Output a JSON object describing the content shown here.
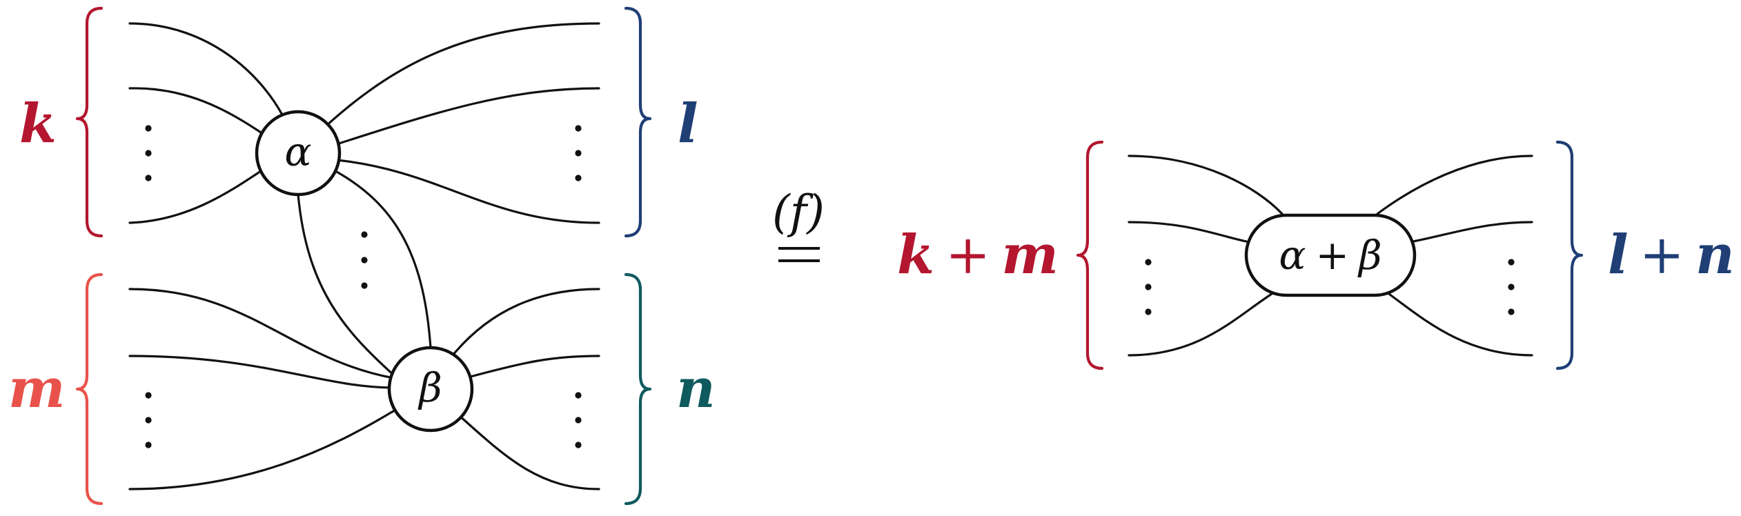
{
  "colors": {
    "k": "#b3162e",
    "m": "#e8524a",
    "l": "#1f3f75",
    "n": "#0f5a5e",
    "ink": "#111111"
  },
  "left": {
    "labels": {
      "k": "k",
      "m": "m",
      "l": "l",
      "n": "n"
    },
    "nodes": {
      "alpha": "α",
      "beta": "β"
    }
  },
  "relation": {
    "tag": "(f)",
    "symbol": "="
  },
  "right": {
    "label_left": {
      "a": "k",
      "op": "+",
      "b": "m"
    },
    "label_right": {
      "a": "l",
      "op": "+",
      "b": "n"
    },
    "node": {
      "a": "α",
      "op": "+",
      "b": "β"
    }
  }
}
